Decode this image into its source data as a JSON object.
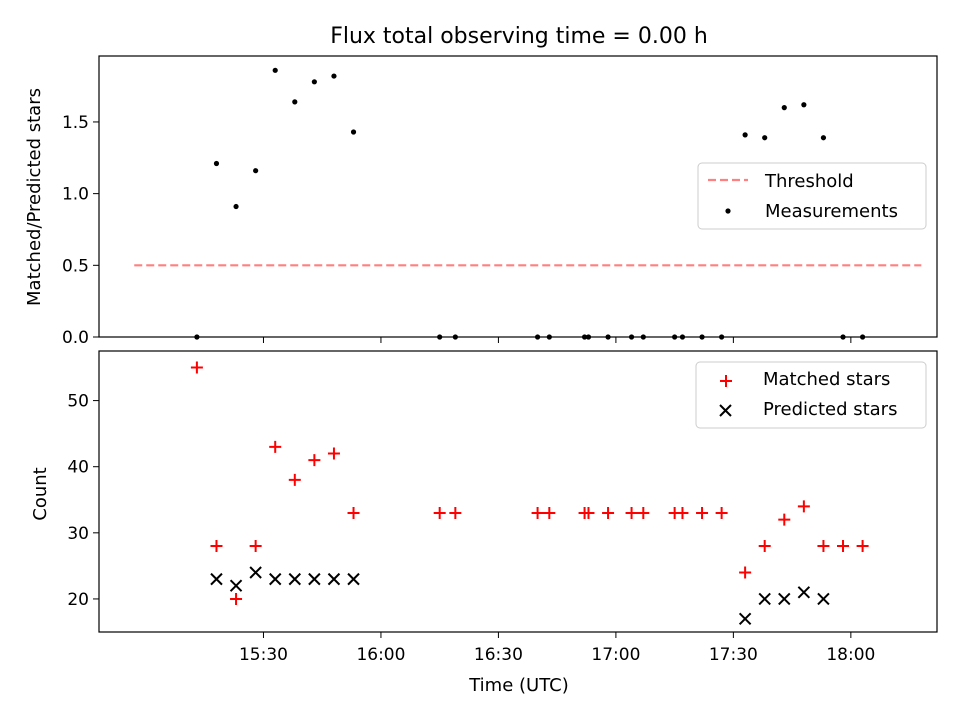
{
  "title": "Flux total observing time = 0.00 h",
  "chart_data": [
    {
      "type": "scatter",
      "ylabel": "Matched/Predicted stars",
      "xlim_minutes": [
        888,
        1102
      ],
      "ylim": [
        0,
        1.96
      ],
      "yticks": [
        0.0,
        0.5,
        1.0,
        1.5
      ],
      "ytick_labels": [
        "0.0",
        "0.5",
        "1.0",
        "1.5"
      ],
      "threshold": {
        "name": "Threshold",
        "value": 0.5,
        "x_start": 897,
        "x_end": 1098,
        "color": "#ff8080",
        "style": "dashed"
      },
      "series": [
        {
          "name": "Measurements",
          "marker": "dot",
          "color": "#000000",
          "x": [
            "15:13",
            "15:18",
            "15:23",
            "15:28",
            "15:33",
            "15:38",
            "15:43",
            "15:48",
            "15:53",
            "16:15",
            "16:19",
            "16:40",
            "16:43",
            "16:52",
            "16:53",
            "16:58",
            "17:04",
            "17:07",
            "17:15",
            "17:17",
            "17:22",
            "17:27",
            "17:33",
            "17:38",
            "17:43",
            "17:48",
            "17:53",
            "17:58",
            "18:03"
          ],
          "y": [
            0.0,
            1.21,
            0.91,
            1.16,
            1.86,
            1.64,
            1.78,
            1.82,
            1.43,
            0.0,
            0.0,
            0.0,
            0.0,
            0.0,
            0.0,
            0.0,
            0.0,
            0.0,
            0.0,
            0.0,
            0.0,
            0.0,
            1.41,
            1.39,
            1.6,
            1.62,
            1.39,
            0.0,
            0.0
          ]
        }
      ],
      "legend": {
        "placement": "right"
      }
    },
    {
      "type": "scatter",
      "xlabel": "Time (UTC)",
      "ylabel": "Count",
      "xlim_minutes": [
        888,
        1102
      ],
      "ylim": [
        15,
        57.5
      ],
      "yticks": [
        20,
        30,
        40,
        50
      ],
      "ytick_labels": [
        "20",
        "30",
        "40",
        "50"
      ],
      "xticks_minutes": [
        930,
        960,
        990,
        1020,
        1050,
        1080
      ],
      "xtick_labels": [
        "15:30",
        "16:00",
        "16:30",
        "17:00",
        "17:30",
        "18:00"
      ],
      "series": [
        {
          "name": "Matched stars",
          "marker": "plus",
          "color": "#ff0000",
          "x": [
            "15:13",
            "15:18",
            "15:23",
            "15:28",
            "15:33",
            "15:38",
            "15:43",
            "15:48",
            "15:53",
            "16:15",
            "16:19",
            "16:40",
            "16:43",
            "16:52",
            "16:53",
            "16:58",
            "17:04",
            "17:07",
            "17:15",
            "17:17",
            "17:22",
            "17:27",
            "17:33",
            "17:38",
            "17:43",
            "17:48",
            "17:53",
            "17:58",
            "18:03"
          ],
          "y": [
            55,
            28,
            20,
            28,
            43,
            38,
            41,
            42,
            33,
            33,
            33,
            33,
            33,
            33,
            33,
            33,
            33,
            33,
            33,
            33,
            33,
            33,
            24,
            28,
            32,
            34,
            28,
            28,
            28
          ]
        },
        {
          "name": "Predicted stars",
          "marker": "x",
          "color": "#000000",
          "x": [
            "15:18",
            "15:23",
            "15:28",
            "15:33",
            "15:38",
            "15:43",
            "15:48",
            "15:53",
            "17:33",
            "17:38",
            "17:43",
            "17:48",
            "17:53"
          ],
          "y": [
            23,
            22,
            24,
            23,
            23,
            23,
            23,
            23,
            17,
            20,
            20,
            21,
            20
          ]
        }
      ],
      "legend": {
        "placement": "top-right"
      }
    }
  ]
}
